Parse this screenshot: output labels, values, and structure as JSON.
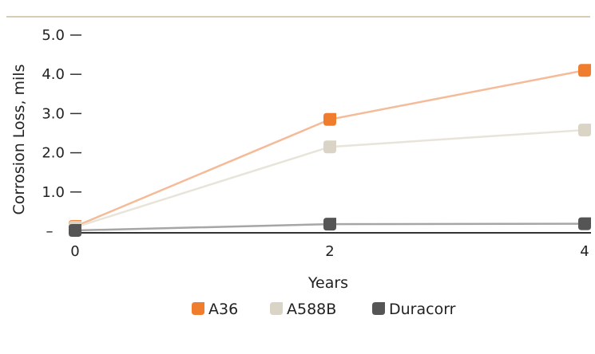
{
  "chart_data": {
    "type": "line",
    "x": [
      0,
      2,
      4
    ],
    "x_tick_labels": [
      "0",
      "2",
      "4"
    ],
    "xlabel": "Years",
    "ylabel": "Corrosion Loss, mils",
    "ylim": [
      0,
      5
    ],
    "y_tick_labels": [
      "–",
      "1.0",
      "2.0",
      "3.0",
      "4.0",
      "5.0"
    ],
    "y_tick_values": [
      0,
      1,
      2,
      3,
      4,
      5
    ],
    "grid": false,
    "legend_position": "bottom-center",
    "series": [
      {
        "name": "A36",
        "values": [
          0.12,
          2.85,
          4.1
        ],
        "line_color": "#f5bb98",
        "marker_color": "#f07d2d"
      },
      {
        "name": "A588B",
        "values": [
          0.1,
          2.15,
          2.58
        ],
        "line_color": "#e8e4d9",
        "marker_color": "#d9d4c5"
      },
      {
        "name": "Duracorr",
        "values": [
          0.02,
          0.18,
          0.19
        ],
        "line_color": "#a6a6a6",
        "marker_color": "#555555"
      }
    ]
  },
  "colors": {
    "top_rule": "#d6cdb8",
    "axis": "#333333"
  }
}
